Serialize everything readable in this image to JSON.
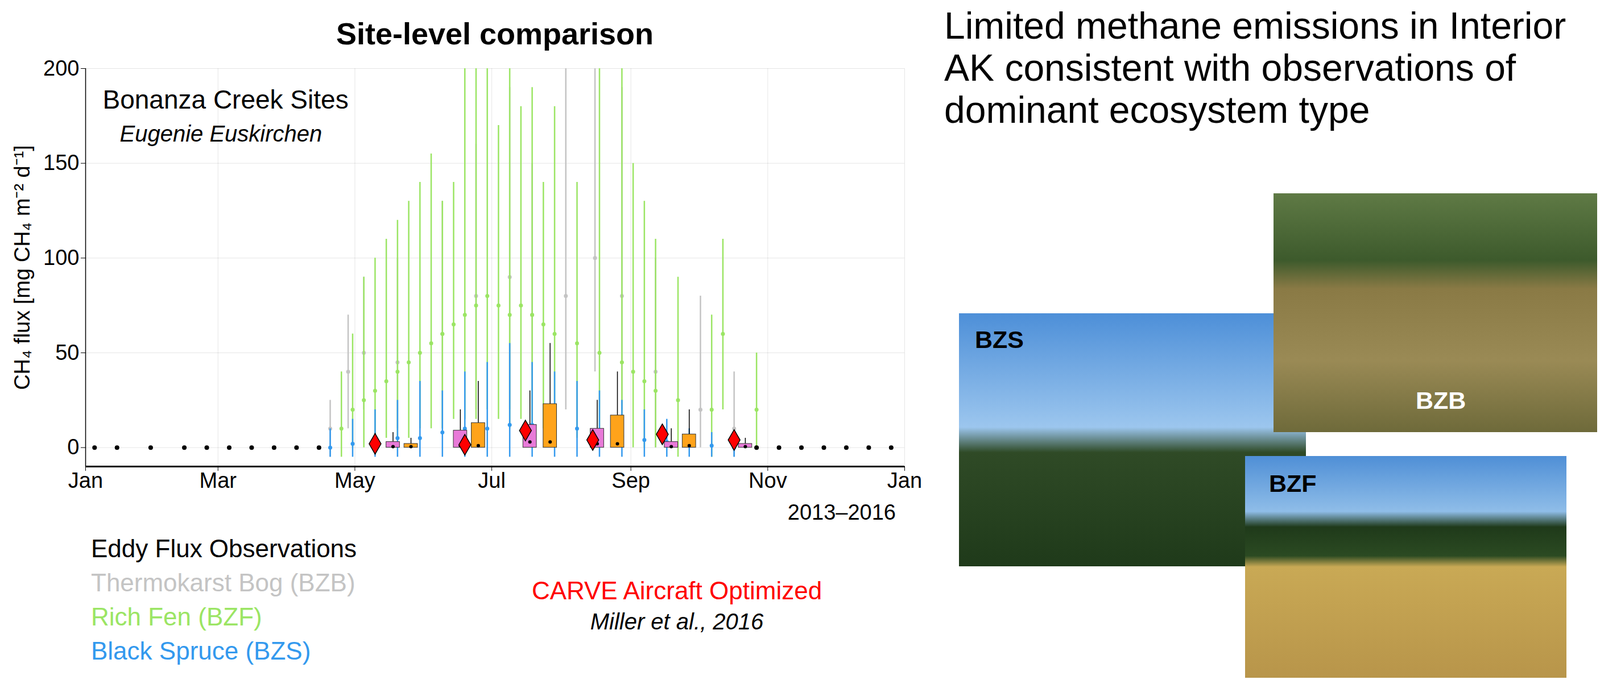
{
  "heading": "Limited methane emissions in Interior AK consistent with observations of dominant ecosystem type",
  "photos": [
    {
      "label": "BZS"
    },
    {
      "label": "BZB"
    },
    {
      "label": "BZF"
    }
  ],
  "chart_data": {
    "type": "scatter",
    "title": "Site-level comparison",
    "y_label": "CH₄ flux [mg CH₄ m⁻² d⁻¹]",
    "annotations": [
      "Bonanza Creek Sites",
      "Eugenie Euskirchen",
      "2013–2016",
      "Miller et al., 2016"
    ],
    "xlim": [
      1,
      366
    ],
    "xticks": [
      {
        "value": 1,
        "label": "Jan"
      },
      {
        "value": 60,
        "label": "Mar"
      },
      {
        "value": 121,
        "label": "May"
      },
      {
        "value": 182,
        "label": "Jul"
      },
      {
        "value": 244,
        "label": "Sep"
      },
      {
        "value": 305,
        "label": "Nov"
      },
      {
        "value": 366,
        "label": "Jan"
      }
    ],
    "ylim": [
      -10,
      200
    ],
    "yticks": [
      0,
      50,
      100,
      150,
      200
    ],
    "grid": true,
    "legend": "bottom-left",
    "series": [
      {
        "name": "Eddy Flux Observations",
        "color": "#000000",
        "marker": "circle",
        "x": [
          5,
          15,
          30,
          45,
          55,
          65,
          75,
          85,
          95,
          105,
          300,
          310,
          320,
          330,
          340,
          350,
          360
        ],
        "values": [
          0,
          0,
          0,
          0,
          0,
          0,
          0,
          0,
          0,
          0,
          0,
          0,
          0,
          0,
          0,
          0,
          0
        ]
      },
      {
        "name": "Thermokarst Bog (BZB)",
        "color": "#c4c4c4",
        "marker": "circle",
        "x": [
          110,
          118,
          125,
          140,
          160,
          175,
          190,
          200,
          215,
          228,
          240,
          255,
          275,
          290
        ],
        "values": [
          10,
          40,
          50,
          45,
          60,
          80,
          90,
          70,
          80,
          100,
          80,
          40,
          20,
          10
        ],
        "error_low": [
          -5,
          10,
          20,
          10,
          10,
          20,
          20,
          10,
          20,
          40,
          20,
          0,
          0,
          -5
        ],
        "error_high": [
          25,
          70,
          90,
          100,
          130,
          160,
          190,
          150,
          200,
          240,
          190,
          100,
          80,
          40
        ]
      },
      {
        "name": "Rich Fen (BZF)",
        "color": "#9be564",
        "marker": "circle",
        "x": [
          115,
          120,
          125,
          130,
          135,
          140,
          145,
          150,
          155,
          160,
          165,
          170,
          175,
          180,
          185,
          190,
          195,
          200,
          205,
          210,
          220,
          230,
          240,
          245,
          250,
          255,
          265,
          280,
          285,
          300
        ],
        "values": [
          10,
          20,
          25,
          30,
          35,
          40,
          45,
          50,
          55,
          60,
          65,
          70,
          75,
          80,
          75,
          70,
          75,
          70,
          65,
          60,
          55,
          50,
          45,
          40,
          35,
          30,
          25,
          20,
          60,
          20
        ],
        "error_low": [
          -5,
          0,
          0,
          0,
          5,
          5,
          5,
          10,
          10,
          10,
          15,
          15,
          15,
          20,
          15,
          10,
          15,
          10,
          10,
          5,
          5,
          5,
          0,
          0,
          0,
          0,
          -5,
          -5,
          20,
          0
        ],
        "error_high": [
          40,
          60,
          90,
          100,
          110,
          120,
          130,
          140,
          155,
          130,
          140,
          240,
          240,
          240,
          170,
          240,
          180,
          190,
          140,
          180,
          140,
          240,
          240,
          150,
          130,
          110,
          90,
          70,
          110,
          50
        ]
      },
      {
        "name": "Black Spruce (BZS)",
        "color": "#3399ee",
        "marker": "circle",
        "x": [
          110,
          120,
          130,
          140,
          150,
          160,
          170,
          180,
          190,
          200,
          210,
          220,
          230,
          240,
          250,
          260,
          270,
          280,
          290
        ],
        "values": [
          0,
          2,
          3,
          5,
          5,
          8,
          10,
          10,
          12,
          12,
          10,
          10,
          8,
          6,
          4,
          3,
          2,
          1,
          0
        ],
        "error_low": [
          -5,
          -5,
          -5,
          -5,
          -5,
          -5,
          -5,
          -5,
          -5,
          -5,
          -5,
          -5,
          -5,
          -5,
          -5,
          -5,
          -5,
          -5,
          -5
        ],
        "error_high": [
          10,
          15,
          20,
          25,
          35,
          30,
          40,
          45,
          55,
          45,
          40,
          35,
          30,
          25,
          20,
          15,
          10,
          8,
          5
        ]
      },
      {
        "name": "CARVE Aircraft Optimized",
        "color": "#ff0000",
        "marker": "diamond",
        "x": [
          130,
          170,
          197,
          227,
          258,
          290
        ],
        "values": [
          2,
          1.5,
          9,
          4,
          7,
          4
        ]
      }
    ],
    "boxes": [
      {
        "color": "#e87ad8",
        "x": [
          138,
          168,
          199,
          229,
          262,
          295
        ],
        "low": [
          0,
          0,
          0,
          0,
          0,
          0
        ],
        "high": [
          3,
          9,
          12,
          10,
          3,
          2
        ],
        "median": [
          0.5,
          1,
          3,
          2,
          0.5,
          0.5
        ],
        "whisker": [
          8,
          20,
          30,
          25,
          10,
          5
        ]
      },
      {
        "color": "#ffa31a",
        "x": [
          146,
          176,
          208,
          238,
          270
        ],
        "low": [
          0,
          0,
          0,
          0,
          0
        ],
        "high": [
          2,
          13,
          23,
          17,
          7
        ],
        "median": [
          0.5,
          1,
          3,
          2,
          1
        ],
        "whisker": [
          5,
          35,
          55,
          40,
          20
        ]
      }
    ]
  }
}
